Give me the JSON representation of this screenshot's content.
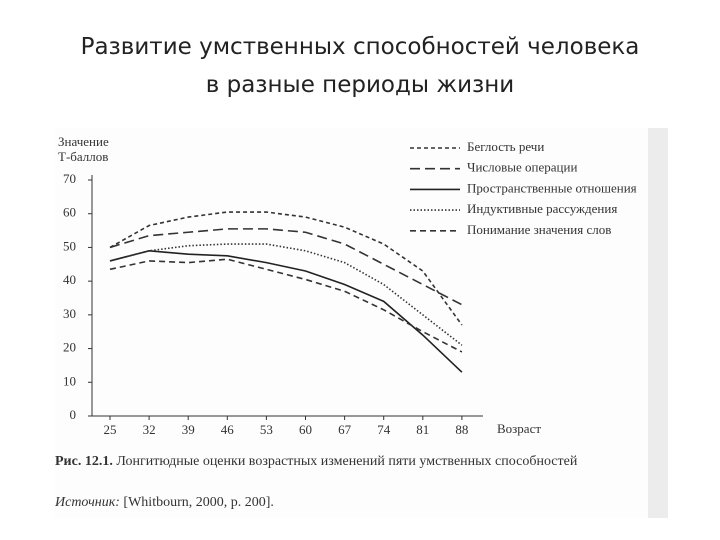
{
  "chart_data": {
    "type": "line",
    "title": [
      "Развитие умственных способностей человека",
      "в разные периоды жизни"
    ],
    "y_label": [
      "Значение",
      "Т-баллов"
    ],
    "x_label": "Возраст",
    "categories": [
      "25",
      "32",
      "39",
      "46",
      "53",
      "60",
      "67",
      "74",
      "81",
      "88"
    ],
    "ylim": [
      0,
      70
    ],
    "yticks": [
      0,
      10,
      20,
      30,
      40,
      50,
      60,
      70
    ],
    "series": [
      {
        "name": "Беглость речи",
        "color": "#333333",
        "dash": "4 3",
        "values": [
          50,
          56.5,
          59,
          60.5,
          60.5,
          59,
          56,
          51,
          43,
          27
        ]
      },
      {
        "name": "Числовые операции",
        "color": "#333333",
        "dash": "10 5",
        "values": [
          50,
          53.5,
          54.5,
          55.5,
          55.5,
          54.5,
          51,
          45,
          39,
          33
        ]
      },
      {
        "name": "Пространственные отношения",
        "color": "#222222",
        "dash": "none",
        "values": [
          46,
          49,
          48,
          47.5,
          45.5,
          43,
          39,
          34,
          24,
          13
        ]
      },
      {
        "name": "Индуктивные рассуждения",
        "color": "#333333",
        "dash": "1.5 2",
        "values": [
          46,
          49,
          50.5,
          51,
          51,
          49,
          45.5,
          39,
          30,
          21
        ]
      },
      {
        "name": "Понимание значения слов",
        "color": "#333333",
        "dash": "6 4",
        "values": [
          43.5,
          46,
          45.5,
          46.5,
          43.5,
          40.5,
          37,
          31.5,
          25,
          19
        ]
      }
    ],
    "caption_label": "Рис. 12.1.",
    "caption": "Лонгитюдные оценки возрастных изменений пяти умственных способностей",
    "source_label": "Источник:",
    "source": "[Whitbourn, 2000, p. 200]."
  }
}
